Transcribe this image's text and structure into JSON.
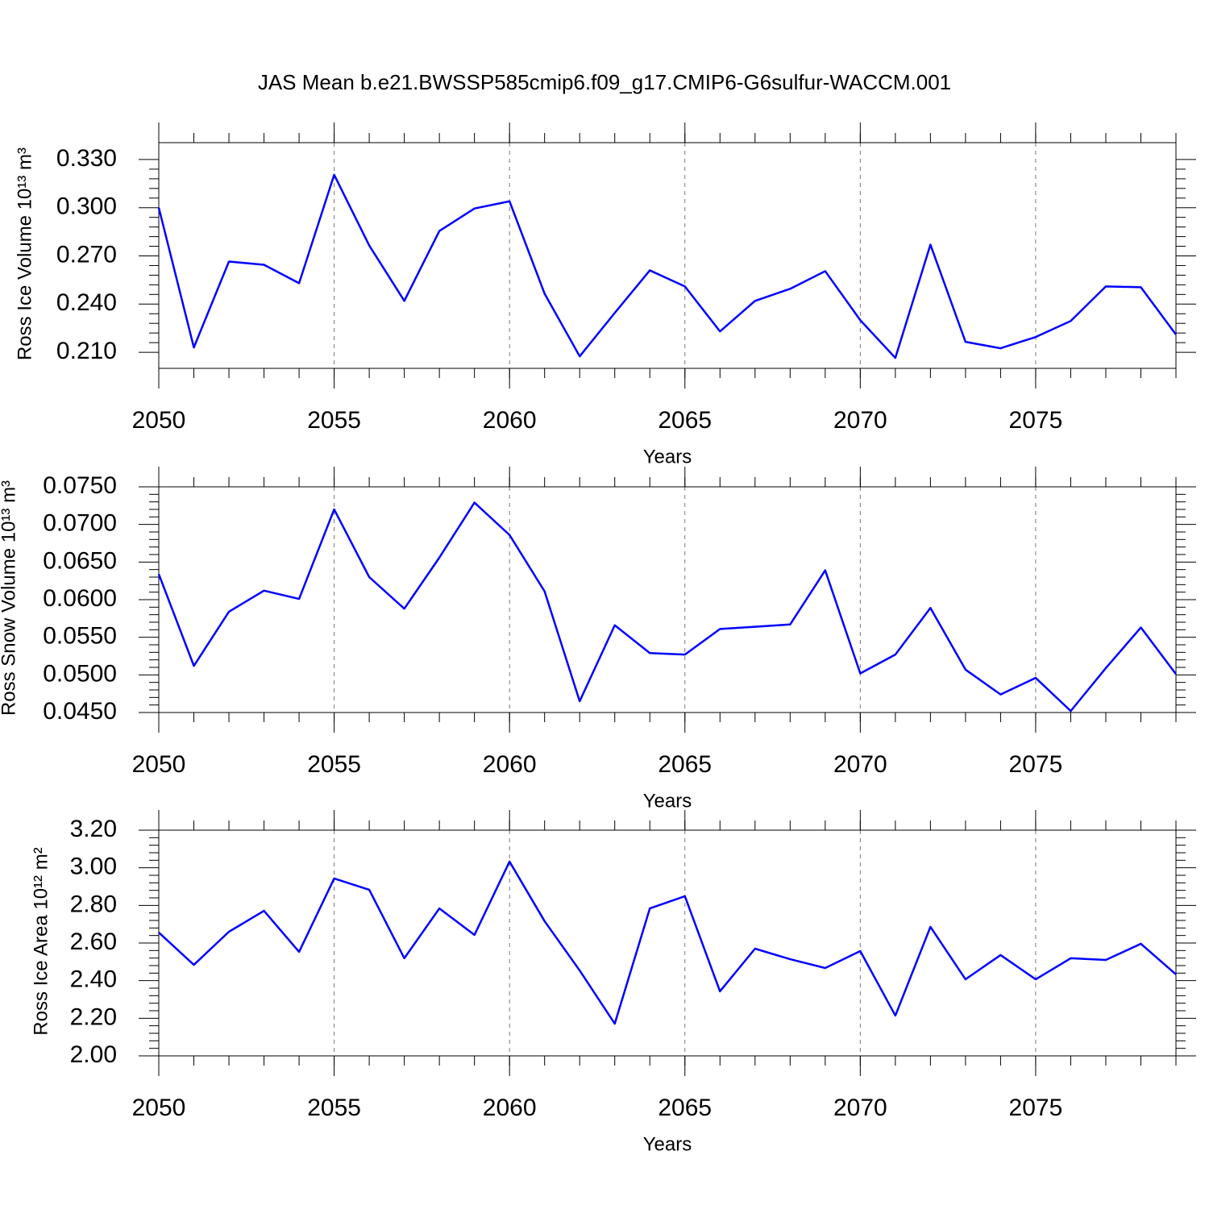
{
  "title": "JAS Mean b.e21.BWSSP585cmip6.f09_g17.CMIP6-G6sulfur-WACCM.001",
  "chart_data": [
    {
      "type": "line",
      "xlabel": "Years",
      "ylabel": "Ross Ice Volume 10¹³ m³",
      "x": [
        2050,
        2051,
        2052,
        2053,
        2054,
        2055,
        2056,
        2057,
        2058,
        2059,
        2060,
        2061,
        2062,
        2063,
        2064,
        2065,
        2066,
        2067,
        2068,
        2069,
        2070,
        2071,
        2072,
        2073,
        2074,
        2075,
        2076,
        2077,
        2078,
        2079
      ],
      "series": [
        {
          "color": "#0000ff",
          "values": [
            0.3,
            0.213,
            0.2665,
            0.2645,
            0.253,
            0.3205,
            0.2765,
            0.242,
            0.2855,
            0.2995,
            0.304,
            0.2465,
            0.2075,
            0.2345,
            0.261,
            0.251,
            0.223,
            0.242,
            0.2495,
            0.2605,
            0.23,
            0.2065,
            0.277,
            0.2165,
            0.2125,
            0.2195,
            0.2295,
            0.251,
            0.2505,
            0.221
          ]
        }
      ],
      "xlim": [
        2050,
        2079
      ],
      "xticks": [
        2050,
        2055,
        2060,
        2065,
        2070,
        2075
      ],
      "ylim": [
        0.2,
        0.3405
      ],
      "yticks": [
        {
          "value": 0.21,
          "label": "0.210"
        },
        {
          "value": 0.24,
          "label": "0.240"
        },
        {
          "value": 0.27,
          "label": "0.270"
        },
        {
          "value": 0.3,
          "label": "0.300"
        },
        {
          "value": 0.33,
          "label": "0.330"
        }
      ],
      "grid": true
    },
    {
      "type": "line",
      "xlabel": "Years",
      "ylabel": "Ross Snow Volume 10¹³ m³",
      "x": [
        2050,
        2051,
        2052,
        2053,
        2054,
        2055,
        2056,
        2057,
        2058,
        2059,
        2060,
        2061,
        2062,
        2063,
        2064,
        2065,
        2066,
        2067,
        2068,
        2069,
        2070,
        2071,
        2072,
        2073,
        2074,
        2075,
        2076,
        2077,
        2078,
        2079
      ],
      "series": [
        {
          "color": "#0000ff",
          "values": [
            0.0634,
            0.0512,
            0.0584,
            0.0612,
            0.0601,
            0.072,
            0.063,
            0.0588,
            0.0656,
            0.0729,
            0.0686,
            0.0611,
            0.0465,
            0.0566,
            0.0529,
            0.0527,
            0.0561,
            0.0564,
            0.0567,
            0.0639,
            0.0502,
            0.0527,
            0.0589,
            0.0507,
            0.0474,
            0.0496,
            0.0452,
            0.0509,
            0.0563,
            0.0501
          ]
        }
      ],
      "xlim": [
        2050,
        2079
      ],
      "xticks": [
        2050,
        2055,
        2060,
        2065,
        2070,
        2075
      ],
      "ylim": [
        0.045,
        0.075
      ],
      "yticks": [
        {
          "value": 0.045,
          "label": "0.0450"
        },
        {
          "value": 0.05,
          "label": "0.0500"
        },
        {
          "value": 0.055,
          "label": "0.0550"
        },
        {
          "value": 0.06,
          "label": "0.0600"
        },
        {
          "value": 0.065,
          "label": "0.0650"
        },
        {
          "value": 0.07,
          "label": "0.0700"
        },
        {
          "value": 0.075,
          "label": "0.0750"
        }
      ],
      "grid": true
    },
    {
      "type": "line",
      "xlabel": "Years",
      "ylabel": "Ross Ice Area 10¹² m²",
      "x": [
        2050,
        2051,
        2052,
        2053,
        2054,
        2055,
        2056,
        2057,
        2058,
        2059,
        2060,
        2061,
        2062,
        2063,
        2064,
        2065,
        2066,
        2067,
        2068,
        2069,
        2070,
        2071,
        2072,
        2073,
        2074,
        2075,
        2076,
        2077,
        2078,
        2079
      ],
      "series": [
        {
          "color": "#0000ff",
          "values": [
            2.656,
            2.484,
            2.66,
            2.771,
            2.553,
            2.943,
            2.883,
            2.519,
            2.784,
            2.643,
            3.033,
            2.716,
            2.454,
            2.171,
            2.784,
            2.849,
            2.343,
            2.57,
            2.514,
            2.467,
            2.557,
            2.214,
            2.686,
            2.407,
            2.536,
            2.407,
            2.519,
            2.51,
            2.596,
            2.433
          ]
        }
      ],
      "xlim": [
        2050,
        2079
      ],
      "xticks": [
        2050,
        2055,
        2060,
        2065,
        2070,
        2075
      ],
      "ylim": [
        2.0,
        3.2
      ],
      "yticks": [
        {
          "value": 2.0,
          "label": "2.00"
        },
        {
          "value": 2.2,
          "label": "2.20"
        },
        {
          "value": 2.4,
          "label": "2.40"
        },
        {
          "value": 2.6,
          "label": "2.60"
        },
        {
          "value": 2.8,
          "label": "2.80"
        },
        {
          "value": 3.0,
          "label": "3.00"
        },
        {
          "value": 3.2,
          "label": "3.20"
        }
      ],
      "grid": true
    }
  ]
}
